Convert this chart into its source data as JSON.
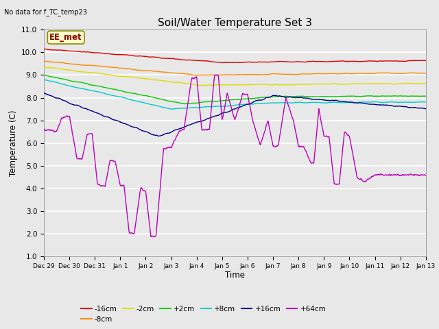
{
  "title": "Soil/Water Temperature Set 3",
  "xlabel": "Time",
  "ylabel": "Temperature (C)",
  "ylim": [
    1.0,
    11.0
  ],
  "yticks": [
    1.0,
    2.0,
    3.0,
    4.0,
    5.0,
    6.0,
    7.0,
    8.0,
    9.0,
    10.0,
    11.0
  ],
  "bg_color": "#e8e8e8",
  "no_data_text": "No data for f_TC_temp23",
  "ee_met_label": "EE_met",
  "x_labels": [
    "Dec 29",
    "Dec 30",
    "Dec 31",
    "Jan 1",
    "Jan 2",
    "Jan 3",
    "Jan 4",
    "Jan 5",
    "Jan 6",
    "Jan 7",
    "Jan 8",
    "Jan 9",
    "Jan 10",
    "Jan 11",
    "Jan 12",
    "Jan 13"
  ],
  "series_colors": {
    "-16cm": "#dd0000",
    "-8cm": "#ff8800",
    "-2cm": "#dddd00",
    "+2cm": "#00cc00",
    "+8cm": "#00cccc",
    "+16cm": "#000088",
    "+64cm": "#bb00bb"
  },
  "lw": 1.0
}
